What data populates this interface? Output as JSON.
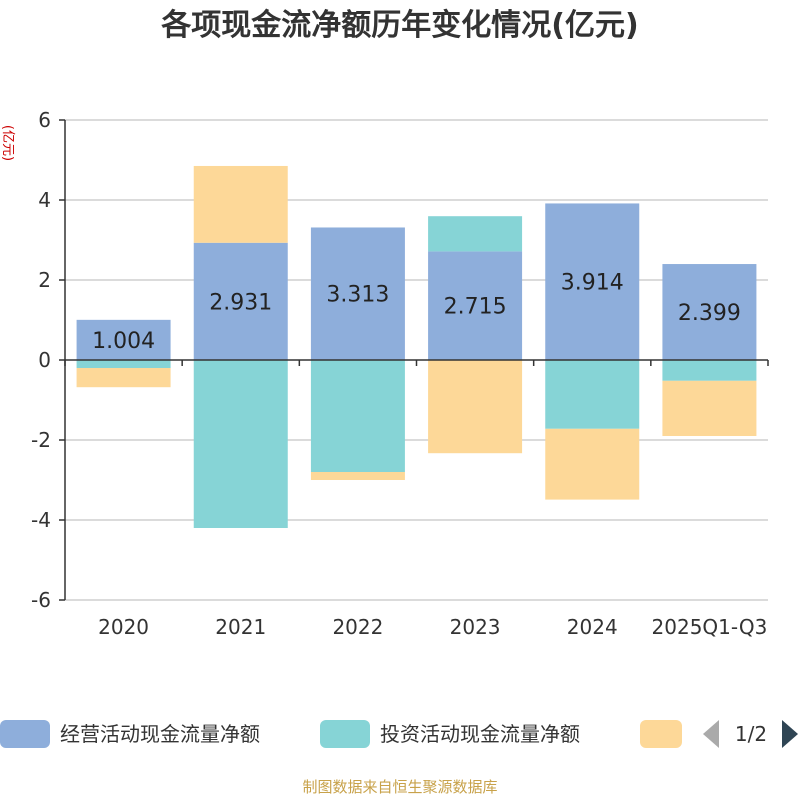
{
  "chart_data": {
    "type": "bar",
    "stacked": true,
    "title": "各项现金流净额历年变化情况(亿元)",
    "ylabel": "(亿元)",
    "xlabel": "",
    "ylim": [
      -6,
      6
    ],
    "yticks": [
      6,
      4,
      2,
      0,
      -2,
      -4,
      -6
    ],
    "categories": [
      "2020",
      "2021",
      "2022",
      "2023",
      "2024",
      "2025Q1-Q3"
    ],
    "series": [
      {
        "name": "经营活动现金流量净额",
        "color": "#8eaedb",
        "values": [
          1.004,
          2.931,
          3.313,
          2.715,
          3.914,
          2.399
        ],
        "labels": [
          "1.004",
          "2.931",
          "3.313",
          "2.715",
          "3.914",
          "2.399"
        ]
      },
      {
        "name": "投资活动现金流量净额",
        "color": "#86d4d6",
        "values": [
          -0.2,
          -4.2,
          -2.8,
          0.88,
          -1.72,
          -0.52
        ]
      },
      {
        "name": "",
        "color": "#fdd898",
        "values": [
          -0.48,
          1.92,
          -0.2,
          -2.33,
          -1.77,
          -1.38
        ]
      }
    ],
    "legend": {
      "position": "bottom",
      "page": "1/2"
    }
  },
  "footer": "制图数据来自恒生聚源数据库"
}
